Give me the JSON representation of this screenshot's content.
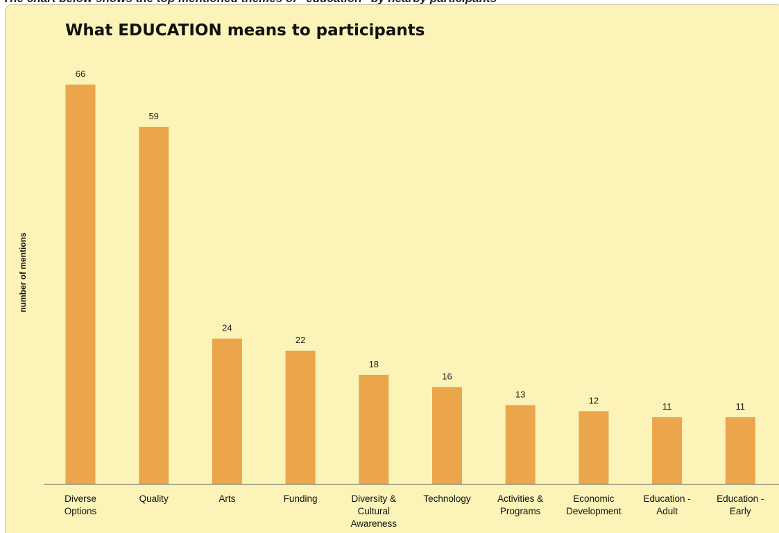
{
  "caption": "The chart below shows the top mentioned themes of “education” by nearby participants",
  "chart_data": {
    "type": "bar",
    "title": "What EDUCATION means to participants",
    "xlabel": "",
    "ylabel": "number of mentions",
    "categories": [
      "Diverse Options",
      "Quality",
      "Arts",
      "Funding",
      "Diversity & Cultural Awareness",
      "Technology",
      "Activities & Programs",
      "Economic Development",
      "Education - Adult",
      "Education - Early"
    ],
    "values": [
      66,
      59,
      24,
      22,
      18,
      16,
      13,
      12,
      11,
      11
    ],
    "ylim": [
      0,
      66
    ],
    "grid": false,
    "legend": "none",
    "bar_color": "#eba54a",
    "background_color": "#fbf3b7"
  }
}
